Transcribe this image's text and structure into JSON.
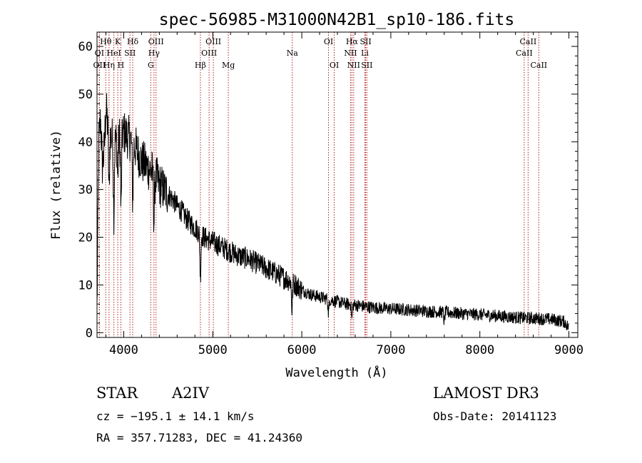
{
  "chart_data": {
    "type": "line",
    "title": "spec-56985-M31000N42B1_sp10-186.fits",
    "xlabel": "Wavelength (Å)",
    "ylabel": "Flux (relative)",
    "xlim": [
      3700,
      9100
    ],
    "ylim": [
      -1,
      63
    ],
    "xticks": [
      4000,
      5000,
      6000,
      7000,
      8000,
      9000
    ],
    "yticks": [
      0,
      10,
      20,
      30,
      40,
      50,
      60
    ],
    "series": [
      {
        "name": "spectrum",
        "anchors": [
          [
            3700,
            5
          ],
          [
            3720,
            40
          ],
          [
            3740,
            45
          ],
          [
            3760,
            35
          ],
          [
            3780,
            38
          ],
          [
            3800,
            47
          ],
          [
            3830,
            42
          ],
          [
            3860,
            41
          ],
          [
            3900,
            40
          ],
          [
            3950,
            41
          ],
          [
            4000,
            42
          ],
          [
            4050,
            41
          ],
          [
            4100,
            40
          ],
          [
            4150,
            38
          ],
          [
            4200,
            36
          ],
          [
            4250,
            35
          ],
          [
            4300,
            34
          ],
          [
            4350,
            33
          ],
          [
            4400,
            31
          ],
          [
            4450,
            30
          ],
          [
            4500,
            29
          ],
          [
            4550,
            28
          ],
          [
            4600,
            26.5
          ],
          [
            4650,
            25.5
          ],
          [
            4700,
            24
          ],
          [
            4750,
            23
          ],
          [
            4800,
            22
          ],
          [
            4900,
            20
          ],
          [
            5000,
            19
          ],
          [
            5100,
            18
          ],
          [
            5200,
            17
          ],
          [
            5300,
            16
          ],
          [
            5400,
            15.5
          ],
          [
            5500,
            14.5
          ],
          [
            5600,
            13.5
          ],
          [
            5700,
            12.5
          ],
          [
            5800,
            11.5
          ],
          [
            5900,
            10.5
          ],
          [
            6000,
            9
          ],
          [
            6100,
            8
          ],
          [
            6200,
            7.5
          ],
          [
            6300,
            7
          ],
          [
            6400,
            6.5
          ],
          [
            6500,
            6
          ],
          [
            6600,
            5.8
          ],
          [
            6700,
            5.5
          ],
          [
            6800,
            5.3
          ],
          [
            6900,
            5.1
          ],
          [
            7000,
            5
          ],
          [
            7200,
            4.8
          ],
          [
            7400,
            4.5
          ],
          [
            7600,
            4.3
          ],
          [
            7800,
            4
          ],
          [
            8000,
            3.8
          ],
          [
            8200,
            3.5
          ],
          [
            8400,
            3.2
          ],
          [
            8600,
            3
          ],
          [
            8800,
            2.8
          ],
          [
            8950,
            2.3
          ],
          [
            9000,
            1
          ]
        ],
        "absorption_dips": [
          [
            3835,
            12
          ],
          [
            3889,
            15
          ],
          [
            3933,
            8
          ],
          [
            3970,
            16
          ],
          [
            4101,
            12
          ],
          [
            4340,
            10
          ],
          [
            4861,
            9
          ],
          [
            5890,
            6
          ],
          [
            6300,
            3
          ],
          [
            6563,
            3
          ],
          [
            7600,
            2
          ]
        ],
        "noise_amplitude": 3,
        "color": "#000000"
      }
    ],
    "spectral_lines": [
      {
        "label": "OII",
        "wavelength": 3727,
        "row": 2
      },
      {
        "label": "OI",
        "wavelength": 3727,
        "row": 1
      },
      {
        "label": "Hθ",
        "wavelength": 3798,
        "row": 0
      },
      {
        "label": "Hη",
        "wavelength": 3835,
        "row": 2
      },
      {
        "label": "HeI",
        "wavelength": 3889,
        "row": 1
      },
      {
        "label": "K",
        "wavelength": 3933,
        "row": 0
      },
      {
        "label": "H",
        "wavelength": 3968,
        "row": 2
      },
      {
        "label": "SII",
        "wavelength": 4070,
        "row": 1
      },
      {
        "label": "Hδ",
        "wavelength": 4101,
        "row": 0
      },
      {
        "label": "G",
        "wavelength": 4304,
        "row": 2
      },
      {
        "label": "Hγ",
        "wavelength": 4340,
        "row": 1
      },
      {
        "label": "OIII",
        "wavelength": 4363,
        "row": 0
      },
      {
        "label": "Hβ",
        "wavelength": 4861,
        "row": 2
      },
      {
        "label": "OIII",
        "wavelength": 4959,
        "row": 1
      },
      {
        "label": "OIII",
        "wavelength": 5007,
        "row": 0
      },
      {
        "label": "Mg",
        "wavelength": 5175,
        "row": 2
      },
      {
        "label": "Na",
        "wavelength": 5893,
        "row": 1
      },
      {
        "label": "OI",
        "wavelength": 6300,
        "row": 0
      },
      {
        "label": "OI",
        "wavelength": 6364,
        "row": 2
      },
      {
        "label": "NII",
        "wavelength": 6548,
        "row": 1
      },
      {
        "label": "NII",
        "wavelength": 6583,
        "row": 2
      },
      {
        "label": "Hα",
        "wavelength": 6563,
        "row": 0
      },
      {
        "label": "SII",
        "wavelength": 6717,
        "row": 0
      },
      {
        "label": "Li",
        "wavelength": 6708,
        "row": 1
      },
      {
        "label": "SII",
        "wavelength": 6731,
        "row": 2
      },
      {
        "label": "CaII",
        "wavelength": 8498,
        "row": 1
      },
      {
        "label": "CaII",
        "wavelength": 8542,
        "row": 0
      },
      {
        "label": "CaII",
        "wavelength": 8662,
        "row": 2
      }
    ],
    "line_color": "#b22222"
  },
  "info": {
    "class": "STAR",
    "subclass": "A2IV",
    "survey": "LAMOST DR3",
    "redshift": "cz = −195.1 ± 14.1 km/s",
    "obs_date": "Obs-Date: 20141123",
    "coords": "RA = 357.71283, DEC =  41.24360"
  }
}
